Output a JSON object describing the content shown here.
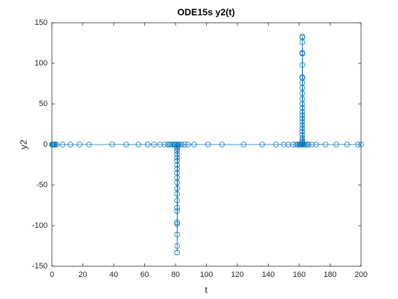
{
  "chart_data": {
    "type": "line",
    "title": "ODE15s y2(t)",
    "x_label": "t",
    "y_label": "y2",
    "color": "#0072bd",
    "marker": "circle",
    "grid": false,
    "x": [
      0,
      0.3,
      0.6,
      1,
      1.5,
      2,
      3,
      7,
      12,
      18,
      24,
      39,
      48,
      56,
      62,
      66,
      70,
      73,
      75,
      76,
      77,
      78,
      79,
      79.5,
      80,
      81,
      81,
      81,
      81,
      81,
      81,
      81,
      81,
      81,
      81,
      81,
      81,
      81,
      81,
      81,
      81,
      81,
      81,
      81,
      81,
      81,
      81,
      81,
      81.5,
      82,
      83,
      84,
      86,
      88,
      92,
      101,
      110,
      124,
      136,
      145,
      150,
      153,
      156,
      158,
      159,
      160,
      160.5,
      161,
      161.5,
      162,
      162,
      162,
      162,
      162,
      162,
      162,
      162,
      162,
      162,
      162,
      162,
      162,
      162,
      162,
      162,
      162,
      162,
      162,
      162,
      162,
      162,
      162,
      162,
      162,
      162,
      162.5,
      163,
      164,
      165,
      166,
      168,
      171,
      177,
      184,
      191,
      198,
      200
    ],
    "values": [
      0,
      0,
      0,
      0,
      0,
      0,
      0,
      0,
      0,
      0,
      0,
      0,
      0,
      0,
      0,
      0,
      0,
      0,
      0,
      0,
      0,
      0,
      0,
      0,
      0,
      -1,
      -3,
      -5,
      -8,
      -12,
      -16,
      -20,
      -25,
      -30,
      -35,
      -41,
      -47,
      -54,
      -61,
      -69,
      -78,
      -82,
      -96,
      -98,
      -111,
      -125,
      -133,
      -133,
      0,
      0,
      0,
      0,
      0,
      0,
      0,
      0,
      0,
      0,
      0,
      0,
      0,
      0,
      0,
      0,
      0,
      0,
      0,
      0,
      0,
      1,
      3,
      5,
      8,
      12,
      16,
      20,
      24,
      28,
      32,
      36,
      40,
      45,
      50,
      56,
      63,
      70,
      76,
      82,
      83,
      98,
      112,
      113,
      126,
      132,
      133,
      0,
      0,
      0,
      0,
      0,
      0,
      0,
      0,
      0,
      0,
      0,
      0
    ],
    "xlim": [
      0,
      200
    ],
    "xticks": [
      0,
      20,
      40,
      60,
      80,
      100,
      120,
      140,
      160,
      180,
      200
    ],
    "ylim": [
      -150,
      150
    ],
    "yticks": [
      -150,
      -100,
      -50,
      0,
      50,
      100,
      150
    ]
  }
}
